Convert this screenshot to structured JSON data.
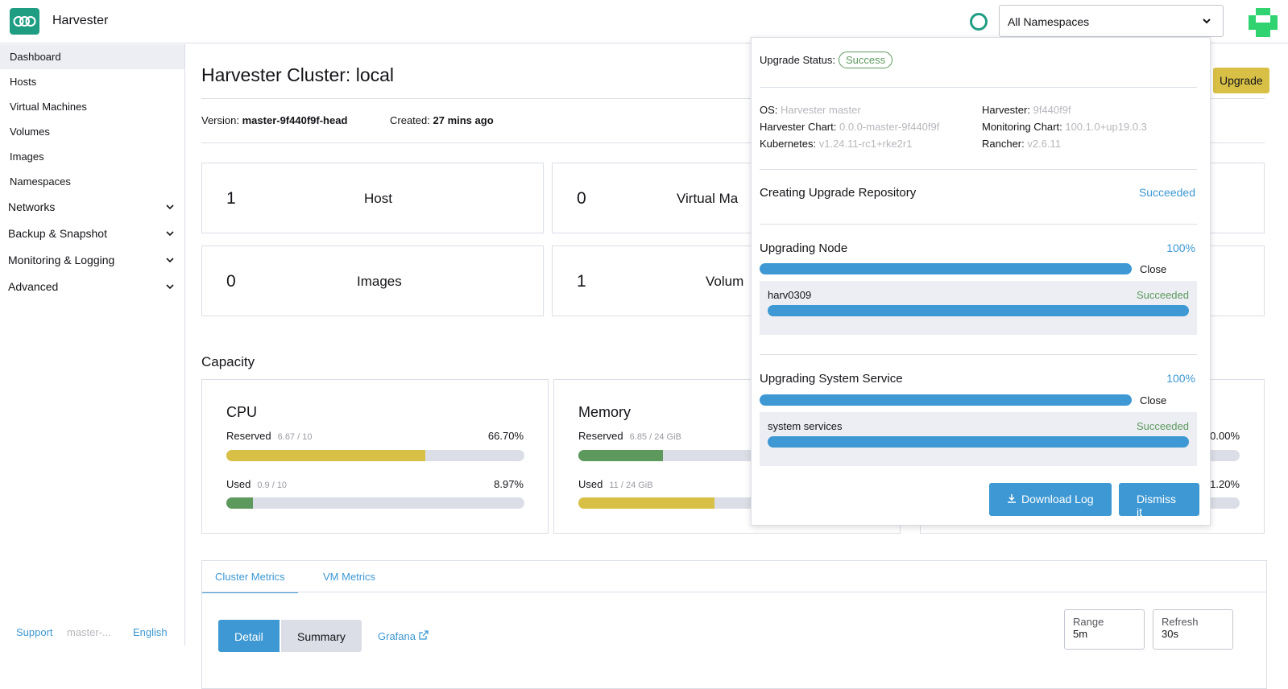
{
  "header": {
    "app_title": "Harvester",
    "namespace_select": "All Namespaces"
  },
  "sidebar": {
    "items": [
      "Dashboard",
      "Hosts",
      "Virtual Machines",
      "Volumes",
      "Images",
      "Namespaces"
    ],
    "groups": [
      "Networks",
      "Backup & Snapshot",
      "Monitoring & Logging",
      "Advanced"
    ],
    "footer": {
      "support": "Support",
      "version": "master-...",
      "language": "English"
    }
  },
  "main": {
    "title": "Harvester Cluster: local",
    "upgrade_button": "Upgrade",
    "version_label": "Version:",
    "version_value": "master-9f440f9f-head",
    "created_label": "Created:",
    "created_value": "27 mins ago",
    "cards": [
      {
        "count": "1",
        "label": "Host"
      },
      {
        "count": "0",
        "label": "Virtual Ma"
      },
      {
        "count": "0",
        "label": "Images"
      },
      {
        "count": "1",
        "label": "Volum"
      }
    ],
    "capacity_title": "Capacity",
    "capacity": [
      {
        "title": "CPU",
        "reserved_label": "Reserved",
        "reserved_detail": "6.67 / 10",
        "reserved_pct": "66.70%",
        "reserved_fill": 0.667,
        "used_label": "Used",
        "used_detail": "0.9 / 10",
        "used_pct": "8.97%",
        "used_fill": 0.0897
      },
      {
        "title": "Memory",
        "reserved_label": "Reserved",
        "reserved_detail": "6.85 / 24 GiB",
        "reserved_fill": 0.285,
        "used_label": "Used",
        "used_detail": "11 / 24 GiB",
        "used_fill": 0.458
      },
      {
        "reserved_pct": "30.00%",
        "used_pct": "1.20%"
      }
    ],
    "colors": {
      "reserved": "#d8c046",
      "used_cpu": "#5d995d",
      "reserved_mem": "#5d995d",
      "used_mem": "#d8c046"
    },
    "tabs": [
      "Cluster Metrics",
      "VM Metrics"
    ],
    "segments": [
      "Detail",
      "Summary"
    ],
    "grafana": "Grafana",
    "range_label": "Range",
    "range_value": "5m",
    "refresh_label": "Refresh",
    "refresh_value": "30s"
  },
  "popup": {
    "status_label": "Upgrade Status:",
    "status_value": "Success",
    "os_label": "OS:",
    "os_value": "Harvester master",
    "harvester_label": "Harvester:",
    "harvester_value": "9f440f9f",
    "chart_label": "Harvester Chart:",
    "chart_value": "0.0.0-master-9f440f9f",
    "monitoring_label": "Monitoring Chart:",
    "monitoring_value": "100.1.0+up19.0.3",
    "k8s_label": "Kubernetes:",
    "k8s_value": "v1.24.11-rc1+rke2r1",
    "rancher_label": "Rancher:",
    "rancher_value": "v2.6.11",
    "repo_title": "Creating Upgrade Repository",
    "repo_status": "Succeeded",
    "node_title": "Upgrading Node",
    "node_pct": "100%",
    "node_close": "Close",
    "node_item": "harv0309",
    "node_item_status": "Succeeded",
    "svc_title": "Upgrading System Service",
    "svc_pct": "100%",
    "svc_close": "Close",
    "svc_item": "system services",
    "svc_item_status": "Succeeded",
    "download_button": "Download Log",
    "dismiss_button": "Dismiss it"
  }
}
